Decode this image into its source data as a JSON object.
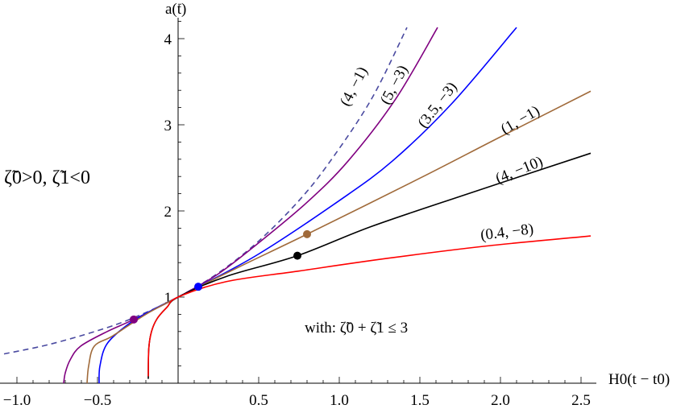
{
  "chart_data": {
    "type": "line",
    "xlabel": "H0(t − t0)",
    "ylabel": "a(t)",
    "xlim": [
      -1.08,
      2.56
    ],
    "ylim": [
      0,
      4.25
    ],
    "x_ticks": [
      "−1.0",
      "−0.5",
      "0.5",
      "1.0",
      "1.5",
      "2.0",
      "2.5"
    ],
    "x_tick_values": [
      -1.0,
      -0.5,
      0.5,
      1.0,
      1.5,
      2.0,
      2.5
    ],
    "y_ticks": [
      "1",
      "2",
      "3",
      "4"
    ],
    "y_tick_values": [
      1,
      2,
      3,
      4
    ],
    "grid": false,
    "condition_label": "ζ̃0>0,  ζ̃1<0",
    "constraint_label": "with:  ζ̃0 + ζ̃1 ≤ 3",
    "series": [
      {
        "name": "(4, −1)",
        "color": "#4a4aa0",
        "dashed": true,
        "points": [
          [
            -1.08,
            0.34
          ],
          [
            -0.8,
            0.45
          ],
          [
            -0.5,
            0.61
          ],
          [
            -0.275,
            0.76
          ],
          [
            0,
            1
          ],
          [
            0.25,
            1.28
          ],
          [
            0.5,
            1.65
          ],
          [
            0.75,
            2.12
          ],
          [
            0.945,
            2.58
          ],
          [
            1.2,
            3.3
          ],
          [
            1.42,
            4.13
          ]
        ],
        "marker": null
      },
      {
        "name": "(5, −3)",
        "color": "#800080",
        "dashed": false,
        "points": [
          [
            -0.71,
            0
          ],
          [
            -0.7,
            0.12
          ],
          [
            -0.67,
            0.27
          ],
          [
            -0.605,
            0.43
          ],
          [
            -0.44,
            0.6
          ],
          [
            -0.275,
            0.74
          ],
          [
            0,
            1
          ],
          [
            0.25,
            1.27
          ],
          [
            0.5,
            1.63
          ],
          [
            0.8,
            2.1
          ],
          [
            1.055,
            2.58
          ],
          [
            1.35,
            3.3
          ],
          [
            1.61,
            4.13
          ]
        ],
        "marker": [
          -0.275,
          0.74
        ]
      },
      {
        "name": "(3.5, −3)",
        "color": "#0000ff",
        "dashed": false,
        "points": [
          [
            -0.49,
            0
          ],
          [
            -0.485,
            0.2
          ],
          [
            -0.44,
            0.46
          ],
          [
            -0.305,
            0.69
          ],
          [
            -0.15,
            0.86
          ],
          [
            0,
            1
          ],
          [
            0.125,
            1.12
          ],
          [
            0.5,
            1.5
          ],
          [
            1.0,
            2.12
          ],
          [
            1.33,
            2.58
          ],
          [
            1.7,
            3.25
          ],
          [
            2.1,
            4.13
          ]
        ],
        "marker": [
          0.125,
          1.12
        ]
      },
      {
        "name": "(1, −1)",
        "color": "#a06a3a",
        "dashed": false,
        "points": [
          [
            -0.565,
            0
          ],
          [
            -0.555,
            0.2
          ],
          [
            -0.52,
            0.43
          ],
          [
            -0.405,
            0.55
          ],
          [
            -0.2,
            0.8
          ],
          [
            0,
            1
          ],
          [
            0.4,
            1.37
          ],
          [
            0.8,
            1.73
          ],
          [
            1.5,
            2.38
          ],
          [
            2.0,
            2.86
          ],
          [
            2.56,
            3.39
          ]
        ],
        "marker": [
          0.8,
          1.73
        ]
      },
      {
        "name": "(4, −10)",
        "color": "#000000",
        "dashed": false,
        "points": [
          [
            -0.185,
            0.05
          ],
          [
            -0.182,
            0.4
          ],
          [
            -0.165,
            0.6
          ],
          [
            -0.13,
            0.75
          ],
          [
            -0.07,
            0.88
          ],
          [
            0,
            1
          ],
          [
            0.3,
            1.24
          ],
          [
            0.74,
            1.48
          ],
          [
            1.2,
            1.82
          ],
          [
            1.8,
            2.2
          ],
          [
            2.56,
            2.67
          ]
        ],
        "marker": [
          0.74,
          1.48
        ]
      },
      {
        "name": "(0.4, −8)",
        "color": "#ff0000",
        "dashed": false,
        "points": [
          [
            -0.185,
            0.08
          ],
          [
            -0.182,
            0.4
          ],
          [
            -0.165,
            0.6
          ],
          [
            -0.13,
            0.75
          ],
          [
            -0.07,
            0.88
          ],
          [
            0,
            1
          ],
          [
            0.3,
            1.18
          ],
          [
            0.74,
            1.3
          ],
          [
            1.3,
            1.45
          ],
          [
            1.9,
            1.59
          ],
          [
            2.56,
            1.71
          ]
        ],
        "marker": null
      }
    ],
    "labels": [
      {
        "text": "(4, −1)"
      },
      {
        "text": "(5, −3)"
      },
      {
        "text": "(3.5, −3)"
      },
      {
        "text": "(1, −1)"
      },
      {
        "text": "(4, −10)"
      },
      {
        "text": "(0.4, −8)"
      }
    ]
  }
}
